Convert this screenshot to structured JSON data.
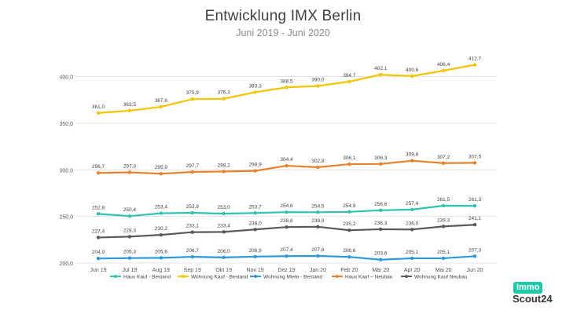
{
  "chart_data": {
    "type": "line",
    "title": "Entwicklung IMX Berlin",
    "subtitle": "Juni 2019 - Juni 2020",
    "xlabel": "",
    "ylabel": "",
    "ylim": [
      200,
      430
    ],
    "y_ticks": [
      "200,0",
      "250,0",
      "300,0",
      "350,0",
      "400,0"
    ],
    "grid": "horizontal",
    "legend_position": "bottom",
    "categories": [
      "Jun 19",
      "Jul 19",
      "Aug 19",
      "Sep 19",
      "Okt 19",
      "Nov 19",
      "Dez 19",
      "Jan 20",
      "Feb 20",
      "Mär 20",
      "Apr 20",
      "Mai 20",
      "Jun 20"
    ],
    "series": [
      {
        "name": "Haus Kauf - Bestand",
        "color": "#2ec4b0",
        "values": [
          252.8,
          250.4,
          253.4,
          253.9,
          253.0,
          253.7,
          254.6,
          254.5,
          254.9,
          256.6,
          257.4,
          261.5,
          261.3
        ],
        "labels": [
          "252,8",
          "250,4",
          "253,4",
          "253,9",
          "253,0",
          "253,7",
          "254,6",
          "254,5",
          "254,9",
          "256,6",
          "257,4",
          "261,5",
          "261,3"
        ]
      },
      {
        "name": "Wohnung Kauf - Bestand",
        "color": "#f5c400",
        "values": [
          361.0,
          363.5,
          367.6,
          375.9,
          376.3,
          383.3,
          388.5,
          390.0,
          394.7,
          402.1,
          400.6,
          406.4,
          412.7
        ],
        "labels": [
          "361,0",
          "363,5",
          "367,6",
          "375,9",
          "376,3",
          "383,3",
          "388,5",
          "390,0",
          "394,7",
          "402,1",
          "400,6",
          "406,4",
          "412,7"
        ]
      },
      {
        "name": "Wohnung Miete - Bestand",
        "color": "#2a9ad8",
        "values": [
          204.9,
          205.3,
          205.6,
          206.7,
          206.0,
          206.9,
          207.4,
          207.6,
          206.6,
          203.6,
          205.1,
          205.1,
          207.3
        ],
        "labels": [
          "204,9",
          "205,3",
          "205,6",
          "206,7",
          "206,0",
          "206,9",
          "207,4",
          "207,6",
          "206,6",
          "203,6",
          "205,1",
          "205,1",
          "207,3"
        ]
      },
      {
        "name": "Haus Kauf – Neubau",
        "color": "#e8822a",
        "values": [
          296.7,
          297.3,
          295.9,
          297.7,
          298.2,
          298.9,
          304.4,
          302.8,
          306.1,
          306.3,
          309.8,
          307.2,
          307.5
        ],
        "labels": [
          "296,7",
          "297,3",
          "295,9",
          "297,7",
          "298,2",
          "298,9",
          "304,4",
          "302,8",
          "306,1",
          "306,3",
          "309,8",
          "307,2",
          "307,5"
        ]
      },
      {
        "name": "Wohnung Kauf Neubau",
        "color": "#5a5a5a",
        "values": [
          227.4,
          228.3,
          230.2,
          233.1,
          233.4,
          236.0,
          238.6,
          238.9,
          235.2,
          236.3,
          236.0,
          239.3,
          241.1
        ],
        "labels": [
          "227,4",
          "228,3",
          "230,2",
          "233,1",
          "233,4",
          "236,0",
          "238,6",
          "238,9",
          "235,2",
          "236,3",
          "236,0",
          "239,3",
          "241,1"
        ]
      }
    ]
  },
  "logo": {
    "line1": "Immo",
    "line2": "Scout24"
  }
}
